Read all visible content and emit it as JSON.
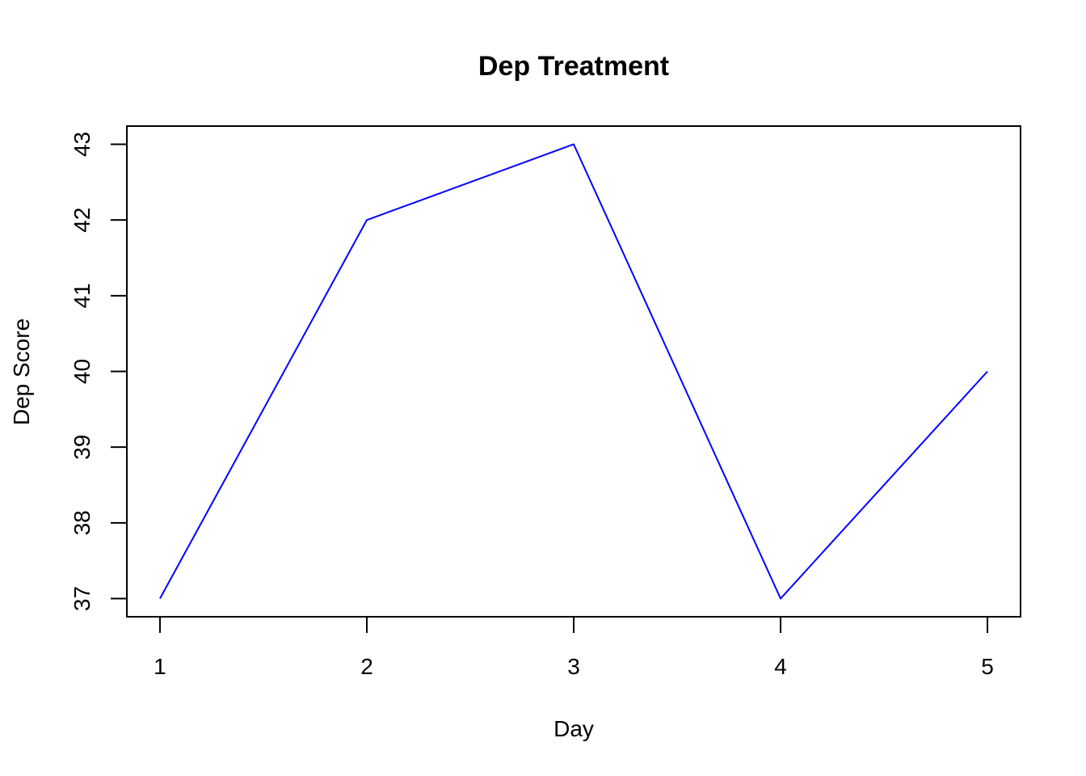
{
  "chart_data": {
    "type": "line",
    "title": "Dep Treatment",
    "xlabel": "Day",
    "ylabel": "Dep Score",
    "x": [
      1,
      2,
      3,
      4,
      5
    ],
    "series": [
      {
        "values": [
          37,
          42,
          43,
          37,
          40
        ],
        "color": "#0000ff"
      }
    ],
    "xticks": [
      "1",
      "2",
      "3",
      "4",
      "5"
    ],
    "yticks": [
      "37",
      "38",
      "39",
      "40",
      "41",
      "42",
      "43"
    ],
    "xlim": [
      0.84,
      5.16
    ],
    "ylim": [
      36.76,
      43.24
    ],
    "grid": false,
    "legend": "none"
  }
}
